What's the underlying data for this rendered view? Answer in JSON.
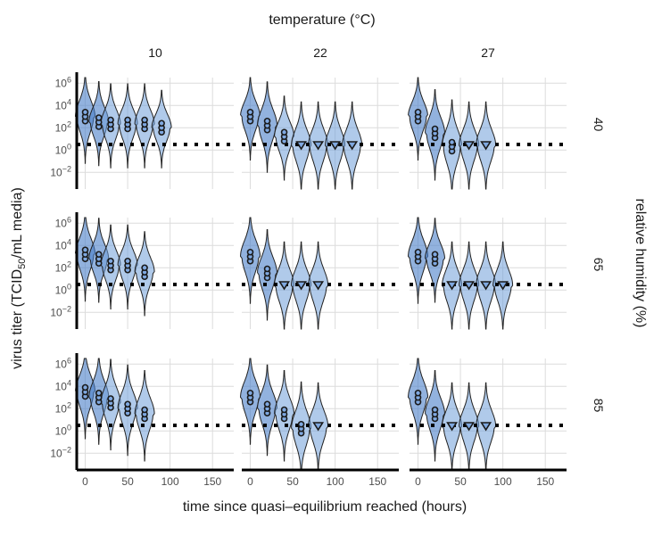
{
  "chart_data": {
    "type": "violin",
    "title": "",
    "facet_col_title": "temperature (°C)",
    "facet_row_title": "relative humidity (%)",
    "xlabel": "time since quasi–equilibrium reached (hours)",
    "ylabel_main": "virus titer (TCID",
    "ylabel_sub": "50",
    "ylabel_tail": "/mL media)",
    "columns": [
      "10",
      "22",
      "27"
    ],
    "rows": [
      "40",
      "65",
      "85"
    ],
    "x_ticks": [
      "0",
      "50",
      "100",
      "150"
    ],
    "x_tick_values": [
      0,
      50,
      100,
      150
    ],
    "xlim": [
      -10,
      175
    ],
    "y_scale": "log10",
    "y_ticks": [
      {
        "base": "10",
        "exp": "6",
        "value": 6
      },
      {
        "base": "10",
        "exp": "4",
        "value": 4
      },
      {
        "base": "10",
        "exp": "2",
        "value": 2
      },
      {
        "base": "10",
        "exp": "0",
        "value": 0
      },
      {
        "base": "10",
        "exp": "−2",
        "value": -2
      }
    ],
    "ylim": [
      -3.5,
      6.5
    ],
    "detection_limit_log10": 0.5,
    "panels": [
      {
        "row": "40",
        "col": "10",
        "timepoints": [
          {
            "t": 0,
            "center": 3.0,
            "spread": 1.4,
            "detected": true
          },
          {
            "t": 16,
            "center": 2.5,
            "spread": 1.3,
            "detected": true
          },
          {
            "t": 30,
            "center": 2.3,
            "spread": 1.3,
            "detected": true
          },
          {
            "t": 50,
            "center": 2.3,
            "spread": 1.3,
            "detected": true
          },
          {
            "t": 70,
            "center": 2.3,
            "spread": 1.3,
            "detected": true
          },
          {
            "t": 90,
            "center": 2.0,
            "spread": 1.2,
            "detected": true
          }
        ]
      },
      {
        "row": "40",
        "col": "22",
        "timepoints": [
          {
            "t": 0,
            "center": 3.0,
            "spread": 1.3,
            "detected": true
          },
          {
            "t": 20,
            "center": 2.2,
            "spread": 1.4,
            "detected": true
          },
          {
            "t": 40,
            "center": 1.2,
            "spread": 1.3,
            "detected": true
          },
          {
            "t": 60,
            "center": 0.4,
            "spread": 1.4,
            "detected": false
          },
          {
            "t": 80,
            "center": 0.4,
            "spread": 1.4,
            "detected": false
          },
          {
            "t": 100,
            "center": 0.4,
            "spread": 1.4,
            "detected": false
          },
          {
            "t": 120,
            "center": 0.4,
            "spread": 1.4,
            "detected": false
          }
        ]
      },
      {
        "row": "40",
        "col": "27",
        "timepoints": [
          {
            "t": 0,
            "center": 3.0,
            "spread": 1.3,
            "detected": true
          },
          {
            "t": 20,
            "center": 1.5,
            "spread": 1.4,
            "detected": true
          },
          {
            "t": 40,
            "center": 0.3,
            "spread": 1.5,
            "detected": true
          },
          {
            "t": 60,
            "center": 0.4,
            "spread": 1.4,
            "detected": false
          },
          {
            "t": 80,
            "center": 0.4,
            "spread": 1.4,
            "detected": false
          }
        ]
      },
      {
        "row": "65",
        "col": "10",
        "timepoints": [
          {
            "t": 0,
            "center": 3.2,
            "spread": 1.4,
            "detected": true
          },
          {
            "t": 16,
            "center": 2.8,
            "spread": 1.3,
            "detected": true
          },
          {
            "t": 30,
            "center": 2.2,
            "spread": 1.3,
            "detected": true
          },
          {
            "t": 50,
            "center": 2.2,
            "spread": 1.3,
            "detected": true
          },
          {
            "t": 70,
            "center": 1.6,
            "spread": 1.3,
            "detected": true
          }
        ]
      },
      {
        "row": "65",
        "col": "22",
        "timepoints": [
          {
            "t": 0,
            "center": 3.0,
            "spread": 1.4,
            "detected": true
          },
          {
            "t": 20,
            "center": 1.5,
            "spread": 1.4,
            "detected": true
          },
          {
            "t": 40,
            "center": 0.4,
            "spread": 1.4,
            "detected": false
          },
          {
            "t": 60,
            "center": 0.4,
            "spread": 1.4,
            "detected": false
          },
          {
            "t": 80,
            "center": 0.4,
            "spread": 1.4,
            "detected": false
          }
        ]
      },
      {
        "row": "65",
        "col": "27",
        "timepoints": [
          {
            "t": 0,
            "center": 3.0,
            "spread": 1.4,
            "detected": true
          },
          {
            "t": 20,
            "center": 2.8,
            "spread": 1.3,
            "detected": true
          },
          {
            "t": 40,
            "center": 0.4,
            "spread": 1.4,
            "detected": false
          },
          {
            "t": 60,
            "center": 0.4,
            "spread": 1.4,
            "detected": false
          },
          {
            "t": 80,
            "center": 0.4,
            "spread": 1.4,
            "detected": false
          },
          {
            "t": 100,
            "center": 0.4,
            "spread": 1.4,
            "detected": false
          }
        ]
      },
      {
        "row": "85",
        "col": "10",
        "timepoints": [
          {
            "t": 0,
            "center": 3.5,
            "spread": 1.4,
            "detected": true
          },
          {
            "t": 16,
            "center": 3.0,
            "spread": 1.4,
            "detected": true
          },
          {
            "t": 30,
            "center": 2.5,
            "spread": 1.4,
            "detected": true
          },
          {
            "t": 50,
            "center": 2.0,
            "spread": 1.4,
            "detected": true
          },
          {
            "t": 70,
            "center": 1.5,
            "spread": 1.4,
            "detected": true
          }
        ]
      },
      {
        "row": "85",
        "col": "22",
        "timepoints": [
          {
            "t": 0,
            "center": 3.0,
            "spread": 1.4,
            "detected": true
          },
          {
            "t": 20,
            "center": 2.0,
            "spread": 1.4,
            "detected": true
          },
          {
            "t": 40,
            "center": 1.5,
            "spread": 1.4,
            "detected": true
          },
          {
            "t": 60,
            "center": 0.2,
            "spread": 1.5,
            "detected": true
          },
          {
            "t": 80,
            "center": 0.4,
            "spread": 1.4,
            "detected": false
          }
        ]
      },
      {
        "row": "85",
        "col": "27",
        "timepoints": [
          {
            "t": 0,
            "center": 3.0,
            "spread": 1.4,
            "detected": true
          },
          {
            "t": 20,
            "center": 1.5,
            "spread": 1.4,
            "detected": true
          },
          {
            "t": 40,
            "center": 0.4,
            "spread": 1.4,
            "detected": false
          },
          {
            "t": 60,
            "center": 0.4,
            "spread": 1.4,
            "detected": false
          },
          {
            "t": 80,
            "center": 0.4,
            "spread": 1.4,
            "detected": false
          }
        ]
      }
    ],
    "colors": {
      "violin": "#6f9fd8",
      "violin_dark": "#4a7fc8",
      "point": "#7fa8e0"
    }
  }
}
